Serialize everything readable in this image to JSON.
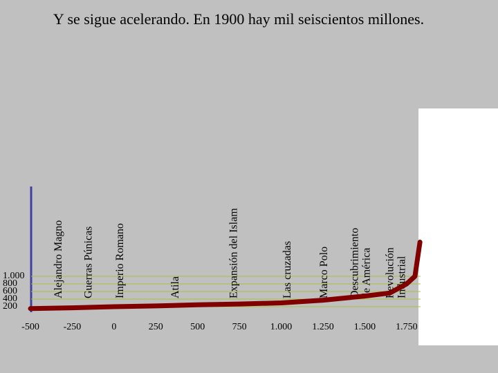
{
  "chart_data": {
    "type": "line",
    "title": "Y se sigue acelerando. En 1900 hay mil seiscientos millones.",
    "x": [
      -500,
      -250,
      0,
      250,
      500,
      750,
      1000,
      1250,
      1500,
      1650,
      1750,
      1800,
      1830
    ],
    "series": [
      {
        "color": "#800000",
        "values": [
          150,
          170,
          200,
          220,
          250,
          270,
          300,
          370,
          480,
          560,
          800,
          1000,
          1900
        ]
      }
    ],
    "xlim": [
      -500,
      1850
    ],
    "xticks": [
      -500,
      -250,
      0,
      250,
      500,
      750,
      {
        "value": 1000,
        "label": "1.000"
      },
      {
        "value": 1250,
        "label": "1.250"
      },
      {
        "value": 1500,
        "label": "1.500"
      },
      {
        "value": 1750,
        "label": "1.750"
      }
    ],
    "ylim": [
      0,
      3400
    ],
    "yticks": [
      200,
      400,
      600,
      800,
      {
        "value": 1000,
        "label": "1.000"
      }
    ],
    "grid": true,
    "annotations": [
      {
        "x": -330,
        "lines": [
          "Alejandro Magno"
        ]
      },
      {
        "x": -150,
        "lines": [
          "Guerras Púnicas"
        ]
      },
      {
        "x": 40,
        "lines": [
          "Imperio Romano"
        ]
      },
      {
        "x": 370,
        "lines": [
          "Atila"
        ]
      },
      {
        "x": 720,
        "lines": [
          "Expansión del Islam"
        ]
      },
      {
        "x": 1040,
        "lines": [
          "Las cruzadas"
        ]
      },
      {
        "x": 1260,
        "lines": [
          "Marco Polo"
        ]
      },
      {
        "x": 1480,
        "lines": [
          "Descubrimiento",
          "de América"
        ]
      },
      {
        "x": 1690,
        "lines": [
          "Revolución",
          "Industrial"
        ]
      }
    ]
  }
}
